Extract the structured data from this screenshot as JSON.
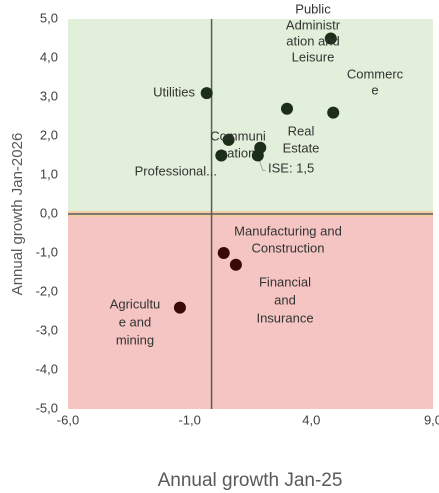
{
  "chart_data": {
    "type": "scatter",
    "x_label": "Annual growth Jan-25",
    "y_label": "Annual growth Jan-2026",
    "x": [
      -0.3,
      4.8,
      4.9,
      0.6,
      1.9,
      1.8,
      0.3,
      3.0,
      0.4,
      0.9,
      -1.4
    ],
    "values": [
      3.1,
      4.5,
      2.6,
      1.9,
      1.7,
      1.5,
      1.5,
      2.7,
      -1.0,
      -1.3,
      -2.4
    ],
    "labels": [
      [
        "Utilities"
      ],
      [
        "Public",
        "Administr",
        "ation and",
        "Leisure"
      ],
      [
        "Commerc",
        "e"
      ],
      [
        "Communi",
        "cation"
      ],
      [
        "Real",
        "Estate"
      ],
      [
        "ISE: 1,5"
      ],
      [
        "Professional..."
      ],
      null,
      [
        "Manufacturing and",
        "Construction"
      ],
      [
        "Financial",
        "and",
        "Insurance"
      ],
      [
        "Agricultu",
        "e and",
        "mining"
      ]
    ],
    "color_positive": "#1c2d18",
    "color_negative": "#3a0808",
    "regions": [
      {
        "ylim": [
          0,
          5
        ],
        "color": "#e2efda"
      },
      {
        "ylim": [
          -5,
          0
        ],
        "color": "#f4c5c2"
      }
    ],
    "vline_x": -0.1,
    "xlim": [
      -6,
      9
    ],
    "ylim": [
      -5,
      5
    ],
    "xticks": [
      {
        "value": -6,
        "label": "-6,0"
      },
      {
        "value": -1,
        "label": "-1,0"
      },
      {
        "value": 4,
        "label": "4,0"
      },
      {
        "value": 9,
        "label": "9,0"
      }
    ],
    "yticks": [
      {
        "value": 5,
        "label": "5,0"
      },
      {
        "value": 4,
        "label": "4,0"
      },
      {
        "value": 3,
        "label": "3,0"
      },
      {
        "value": 2,
        "label": "2,0"
      },
      {
        "value": 1,
        "label": "1,0"
      },
      {
        "value": 0,
        "label": "0,0"
      },
      {
        "value": -1,
        "label": "-1,0"
      },
      {
        "value": -2,
        "label": "-2,0"
      },
      {
        "value": -3,
        "label": "-3,0"
      },
      {
        "value": -4,
        "label": "-4,0"
      },
      {
        "value": -5,
        "label": "-5,0"
      }
    ]
  }
}
